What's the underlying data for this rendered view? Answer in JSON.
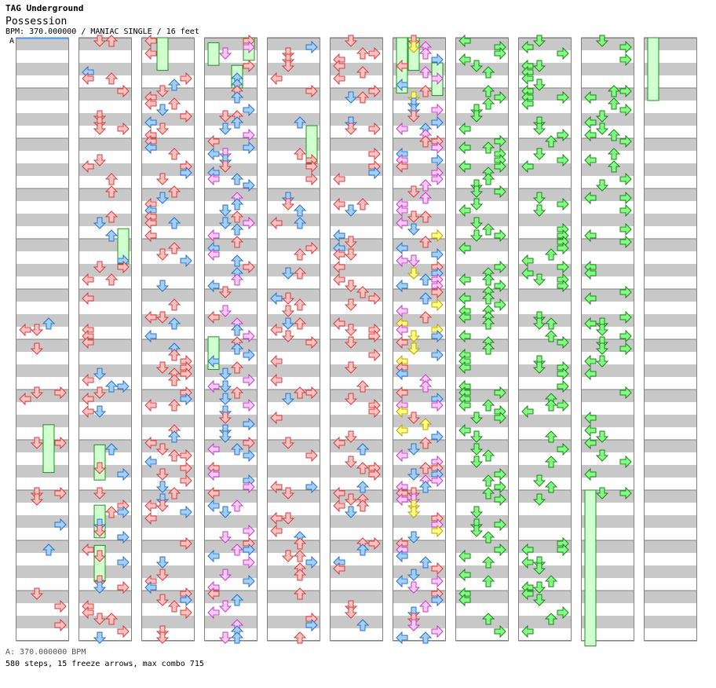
{
  "header": {
    "artist": "TAG Underground",
    "title": "Possession",
    "info": "BPM: 370.000000 / MANIAC SINGLE / 16 feet",
    "marker": "A"
  },
  "footer": {
    "bpm_line": "A: 370.000000 BPM",
    "stats_line": "580 steps, 15 freeze arrows, max combo 715"
  },
  "colors": {
    "stripe": "#c8c8c8",
    "border": "#808080",
    "red": "#ffc0c0",
    "red_outline": "#d04040",
    "blue": "#a0d0ff",
    "blue_outline": "#3070c0",
    "pink": "#ffc8ff",
    "pink_outline": "#c040c0",
    "yellow": "#ffff80",
    "yellow_outline": "#c0a000",
    "green": "#80ff80",
    "green_outline": "#208020",
    "freeze_fill": "#d0ffd0",
    "freeze_outline": "#209020",
    "marker_line": "#4a90e2"
  },
  "columns": 11,
  "measures_per_column": 12,
  "freeze_arrows": [
    {
      "column": 0,
      "lane": 2,
      "measure_start": 7.7,
      "measure_end": 8.65
    },
    {
      "column": 1,
      "lane": 3,
      "measure_start": 3.8,
      "measure_end": 4.5
    },
    {
      "column": 1,
      "lane": 1,
      "measure_start": 8.1,
      "measure_end": 8.8
    },
    {
      "column": 1,
      "lane": 1,
      "measure_start": 9.3,
      "measure_end": 9.95
    },
    {
      "column": 1,
      "lane": 1,
      "measure_start": 10.1,
      "measure_end": 10.8
    },
    {
      "column": 2,
      "lane": 1,
      "measure_start": 0.0,
      "measure_end": 0.65
    },
    {
      "column": 3,
      "lane": 0,
      "measure_start": 0.1,
      "measure_end": 0.55
    },
    {
      "column": 3,
      "lane": 3,
      "measure_start": 0.0,
      "measure_end": 0.45
    },
    {
      "column": 3,
      "lane": 2,
      "measure_start": 0.55,
      "measure_end": 1.0
    },
    {
      "column": 3,
      "lane": 0,
      "measure_start": 5.95,
      "measure_end": 6.6
    },
    {
      "column": 4,
      "lane": 3,
      "measure_start": 1.75,
      "measure_end": 2.5
    },
    {
      "column": 6,
      "lane": 0,
      "measure_start": 0.0,
      "measure_end": 1.1
    },
    {
      "column": 6,
      "lane": 1,
      "measure_start": 0.0,
      "measure_end": 0.65
    },
    {
      "column": 6,
      "lane": 3,
      "measure_start": 0.5,
      "measure_end": 1.15
    },
    {
      "column": 9,
      "lane": 0,
      "measure_start": 9.0,
      "measure_end": 12.1
    },
    {
      "column": 10,
      "lane": 0,
      "measure_start": 0.0,
      "measure_end": 1.25
    }
  ]
}
